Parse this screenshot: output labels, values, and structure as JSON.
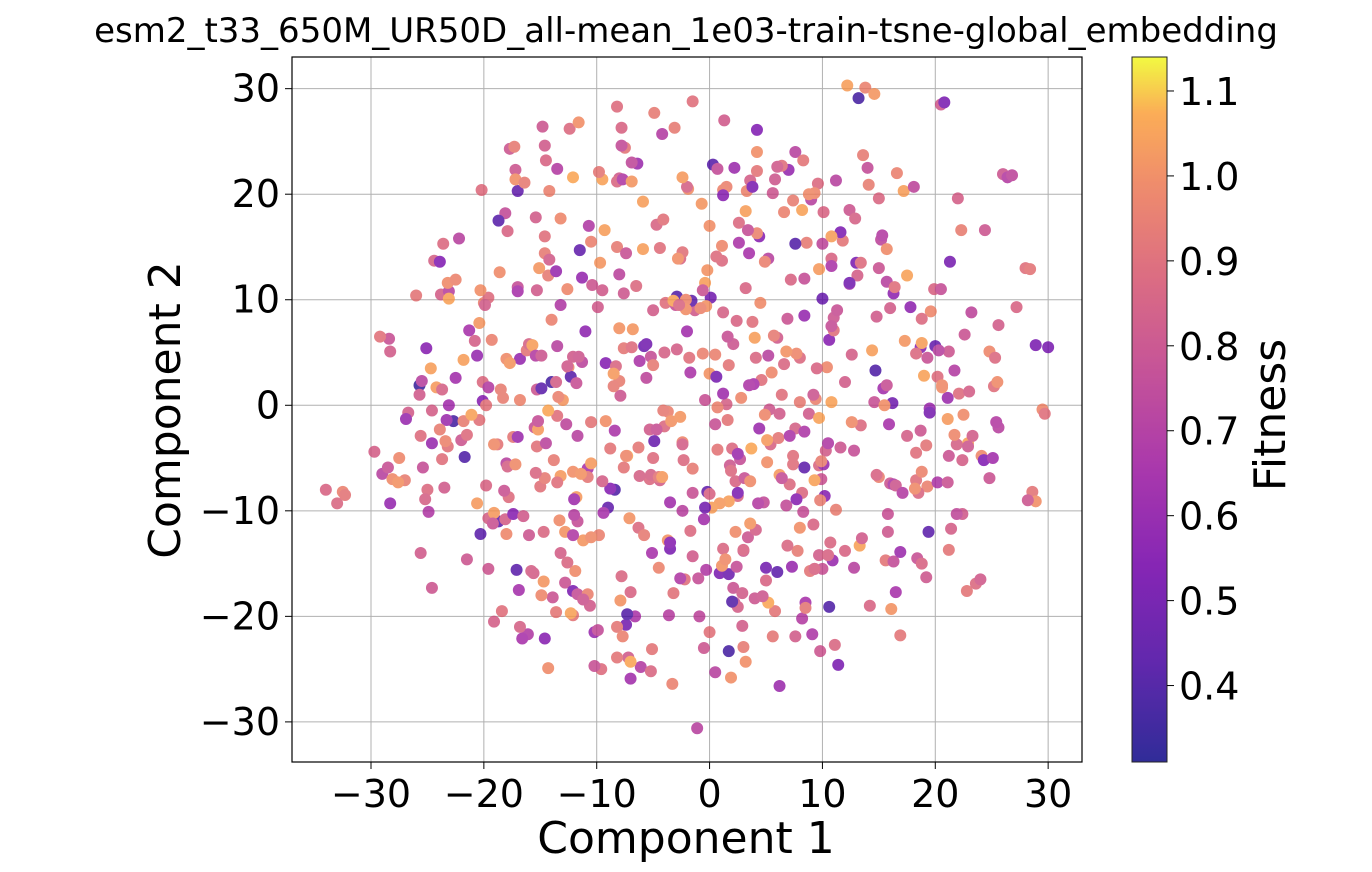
{
  "chart_data": {
    "type": "scatter",
    "title": "esm2_t33_650M_UR50D_all-mean_1e03-train-tsne-global_embedding",
    "xlabel": "Component 1",
    "ylabel": "Component 2",
    "xlim": [
      -37.0,
      33.0
    ],
    "ylim": [
      -33.8,
      33.0
    ],
    "xticks": [
      -30,
      -20,
      -10,
      0,
      10,
      20,
      30
    ],
    "yticks": [
      -30,
      -20,
      -10,
      0,
      10,
      20,
      30
    ],
    "xtick_labels": [
      "−30",
      "−20",
      "−10",
      "0",
      "10",
      "20",
      "30"
    ],
    "ytick_labels": [
      "−30",
      "−20",
      "−10",
      "0",
      "10",
      "20",
      "30"
    ],
    "grid": true,
    "colorbar": {
      "label": "Fitness",
      "colormap": "plasma",
      "range": [
        0.31,
        1.14
      ],
      "ticks": [
        0.4,
        0.5,
        0.6,
        0.7,
        0.8,
        0.9,
        1.0,
        1.1
      ],
      "tick_labels": [
        "0.4",
        "0.5",
        "0.6",
        "0.7",
        "0.8",
        "0.9",
        "1.0",
        "1.1"
      ]
    },
    "point_count": 720,
    "point_cloud": {
      "description": "roughly circular cloud of points centred near the origin, radius about 30 in both components, fitness mostly between 0.75 and 1.05",
      "center": [
        -1.5,
        0.0
      ],
      "radius": 30,
      "fitness_range": [
        0.35,
        1.12
      ]
    },
    "points": [
      [
        -34.0,
        -8.0,
        0.86
      ],
      [
        -33.0,
        -9.3,
        0.87
      ],
      [
        -32.5,
        -8.2,
        0.96
      ],
      [
        -32.3,
        -8.5,
        0.92
      ],
      [
        -29.7,
        -4.4,
        0.84
      ],
      [
        -29.0,
        -6.5,
        0.72
      ],
      [
        -28.5,
        -5.9,
        0.78
      ],
      [
        -28.3,
        -9.3,
        0.6
      ],
      [
        -28.4,
        6.3,
        0.78
      ],
      [
        -28.3,
        5.1,
        0.83
      ],
      [
        -28.1,
        -7.0,
        0.99
      ],
      [
        -27.5,
        -5.0,
        0.98
      ],
      [
        -27.0,
        -7.1,
        0.95
      ],
      [
        -25.7,
        1.9,
        0.35
      ],
      [
        -25.5,
        2.3,
        0.72
      ],
      [
        -25.7,
        1.0,
        0.82
      ],
      [
        -25.1,
        5.4,
        0.56
      ],
      [
        -24.9,
        -10.1,
        0.69
      ],
      [
        -25.0,
        -8.0,
        0.88
      ],
      [
        -23.7,
        -5.1,
        0.9
      ],
      [
        -23.5,
        -7.8,
        0.82
      ],
      [
        -23.8,
        10.5,
        0.84
      ],
      [
        -23.1,
        10.8,
        0.72
      ],
      [
        -23.2,
        11.6,
        0.99
      ],
      [
        -22.5,
        11.9,
        0.97
      ],
      [
        -22.7,
        -1.5,
        0.38
      ],
      [
        -22.0,
        -3.3,
        0.8
      ],
      [
        -21.5,
        -2.8,
        0.89
      ],
      [
        -21.7,
        -4.9,
        0.4
      ],
      [
        -21.5,
        -14.6,
        0.8
      ],
      [
        -21.3,
        7.1,
        0.66
      ],
      [
        -20.8,
        6.1,
        0.84
      ],
      [
        -20.6,
        4.7,
        0.6
      ],
      [
        -20.4,
        -1.4,
        0.91
      ],
      [
        -20.0,
        9.7,
        0.96
      ],
      [
        -20.1,
        0.4,
        0.56
      ],
      [
        -19.8,
        -7.6,
        0.86
      ],
      [
        -19.6,
        -10.7,
        0.85
      ],
      [
        -19.6,
        -15.5,
        0.8
      ],
      [
        -19.1,
        -20.5,
        0.84
      ],
      [
        -18.8,
        -3.7,
        0.92
      ],
      [
        -18.5,
        1.5,
        0.95
      ],
      [
        -18.0,
        -5.5,
        0.72
      ],
      [
        -17.8,
        -8.7,
        0.89
      ],
      [
        -17.7,
        24.3,
        0.8
      ],
      [
        -17.3,
        24.5,
        0.94
      ],
      [
        -17.2,
        22.3,
        0.8
      ],
      [
        -17.0,
        20.3,
        0.45
      ],
      [
        -16.8,
        4.4,
        0.6
      ],
      [
        -16.2,
        5.2,
        0.92
      ],
      [
        -16.0,
        -12.3,
        0.8
      ],
      [
        -15.8,
        -15.7,
        0.85
      ],
      [
        -15.5,
        -2.1,
        0.78
      ],
      [
        -15.3,
        1.5,
        0.8
      ],
      [
        -15.0,
        -7.7,
        0.91
      ],
      [
        -14.8,
        26.4,
        0.8
      ],
      [
        -14.6,
        24.6,
        0.82
      ],
      [
        -14.5,
        23.2,
        0.86
      ],
      [
        -14.3,
        12.3,
        0.94
      ],
      [
        -14.0,
        8.1,
        0.96
      ],
      [
        -13.8,
        -5.2,
        0.94
      ],
      [
        -13.5,
        -1.0,
        0.9
      ],
      [
        -13.2,
        -14.0,
        0.84
      ],
      [
        -12.8,
        -16.8,
        0.79
      ],
      [
        -12.5,
        3.6,
        0.99
      ],
      [
        -12.3,
        2.7,
        0.42
      ],
      [
        -12.1,
        -17.6,
        0.52
      ],
      [
        -11.9,
        -15.7,
        0.99
      ],
      [
        -11.7,
        -2.9,
        0.72
      ],
      [
        -11.3,
        12.1,
        0.6
      ],
      [
        -11.0,
        7.0,
        0.58
      ],
      [
        -10.8,
        -6.0,
        0.66
      ],
      [
        -10.6,
        -19.0,
        0.82
      ],
      [
        -10.2,
        -21.5,
        0.61
      ],
      [
        -9.9,
        9.3,
        0.82
      ],
      [
        -9.7,
        13.5,
        1.02
      ],
      [
        -9.5,
        21.4,
        1.05
      ],
      [
        -9.2,
        4.0,
        0.55
      ],
      [
        -9.0,
        -9.7,
        0.45
      ],
      [
        -8.8,
        -4.1,
        0.92
      ],
      [
        -8.4,
        -8.0,
        0.4
      ],
      [
        -8.2,
        15.0,
        0.94
      ],
      [
        -8.0,
        21.5,
        0.82
      ],
      [
        -7.9,
        0.9,
        0.8
      ],
      [
        -7.6,
        -5.9,
        0.92
      ],
      [
        -7.4,
        -20.8,
        0.5
      ],
      [
        -7.2,
        -23.9,
        0.82
      ],
      [
        -7.0,
        -17.7,
        0.86
      ],
      [
        -6.8,
        7.2,
        1.02
      ],
      [
        -6.5,
        11.3,
        0.88
      ],
      [
        -6.3,
        -11.6,
        0.88
      ],
      [
        -6.1,
        -24.8,
        0.7
      ],
      [
        -5.9,
        19.3,
        1.04
      ],
      [
        -5.6,
        2.6,
        0.74
      ],
      [
        -5.3,
        -2.3,
        0.82
      ],
      [
        -5.1,
        -14.0,
        0.66
      ],
      [
        -4.9,
        27.7,
        0.94
      ],
      [
        -4.7,
        17.1,
        0.86
      ],
      [
        -4.4,
        -7.1,
        0.84
      ],
      [
        -4.2,
        25.7,
        0.7
      ],
      [
        -3.9,
        9.7,
        0.9
      ],
      [
        -3.7,
        -0.6,
        0.96
      ],
      [
        -3.5,
        -9.2,
        0.64
      ],
      [
        -3.3,
        -26.4,
        0.96
      ],
      [
        -3.1,
        26.3,
        0.94
      ],
      [
        -2.9,
        5.3,
        0.84
      ],
      [
        -2.6,
        13.9,
        0.86
      ],
      [
        -2.4,
        -3.5,
        0.98
      ],
      [
        -2.2,
        -16.5,
        0.9
      ],
      [
        -1.9,
        20.5,
        1.0
      ],
      [
        -1.7,
        -11.9,
        0.88
      ],
      [
        -1.5,
        28.8,
        0.9
      ],
      [
        -1.3,
        9.0,
        0.82
      ],
      [
        -1.1,
        -30.6,
        0.72
      ],
      [
        -0.9,
        -20.0,
        0.74
      ],
      [
        -0.6,
        4.9,
        0.96
      ],
      [
        -0.4,
        0.5,
        0.78
      ],
      [
        -0.2,
        -8.2,
        0.45
      ],
      [
        0.0,
        17.0,
        1.0
      ],
      [
        0.1,
        10.2,
        0.5
      ],
      [
        0.3,
        22.8,
        0.42
      ],
      [
        0.5,
        -25.3,
        0.72
      ],
      [
        0.7,
        -4.2,
        0.92
      ],
      [
        0.9,
        -15.9,
        0.52
      ],
      [
        1.1,
        13.7,
        0.88
      ],
      [
        1.3,
        27.0,
        0.82
      ],
      [
        1.5,
        20.7,
        0.96
      ],
      [
        1.7,
        -16.0,
        0.48
      ],
      [
        1.9,
        -25.8,
        1.0
      ],
      [
        2.1,
        5.8,
        0.8
      ],
      [
        2.3,
        -7.2,
        0.86
      ],
      [
        2.6,
        17.3,
        0.88
      ],
      [
        2.8,
        0.7,
        0.98
      ],
      [
        3.0,
        -22.9,
        0.94
      ],
      [
        3.2,
        11.1,
        0.86
      ],
      [
        3.4,
        -12.5,
        0.8
      ],
      [
        3.6,
        21.3,
        0.84
      ],
      [
        3.8,
        7.9,
        0.9
      ],
      [
        4.0,
        -18.3,
        0.8
      ],
      [
        4.2,
        24.0,
        1.0
      ],
      [
        4.4,
        16.0,
        0.56
      ],
      [
        4.6,
        2.4,
        0.9
      ],
      [
        4.8,
        -9.2,
        0.76
      ],
      [
        5.0,
        -15.4,
        0.5
      ],
      [
        5.2,
        13.9,
        0.72
      ],
      [
        5.4,
        -3.7,
        0.86
      ],
      [
        5.6,
        20.1,
        0.8
      ],
      [
        5.8,
        -19.5,
        0.92
      ],
      [
        6.0,
        6.4,
        0.82
      ],
      [
        6.2,
        -26.6,
        0.62
      ],
      [
        6.4,
        1.0,
        0.9
      ],
      [
        6.6,
        18.3,
        0.96
      ],
      [
        6.8,
        -9.5,
        0.76
      ],
      [
        7.0,
        22.3,
        0.6
      ],
      [
        7.2,
        11.9,
        0.86
      ],
      [
        7.4,
        -5.6,
        0.9
      ],
      [
        7.6,
        24.0,
        0.72
      ],
      [
        7.8,
        -13.8,
        0.94
      ],
      [
        8.0,
        4.5,
        0.88
      ],
      [
        8.2,
        -20.2,
        0.7
      ],
      [
        8.4,
        8.5,
        0.6
      ],
      [
        8.6,
        15.4,
        0.94
      ],
      [
        8.8,
        -0.8,
        0.82
      ],
      [
        9.0,
        19.5,
        0.72
      ],
      [
        9.2,
        -11.3,
        0.86
      ],
      [
        9.4,
        0.6,
        0.96
      ],
      [
        9.6,
        21.0,
        0.88
      ],
      [
        9.8,
        -23.3,
        0.8
      ],
      [
        10.0,
        15.3,
        0.74
      ],
      [
        10.2,
        -8.6,
        0.56
      ],
      [
        10.4,
        3.6,
        0.98
      ],
      [
        10.6,
        -19.1,
        0.4
      ],
      [
        10.8,
        13.9,
        0.86
      ],
      [
        11.0,
        8.3,
        0.8
      ],
      [
        11.2,
        21.3,
        0.72
      ],
      [
        11.4,
        -24.6,
        0.52
      ],
      [
        11.6,
        -4.0,
        0.8
      ],
      [
        11.8,
        15.6,
        0.92
      ],
      [
        12.0,
        -13.8,
        0.86
      ],
      [
        12.2,
        30.3,
        1.04
      ],
      [
        12.4,
        18.5,
        0.8
      ],
      [
        12.6,
        4.8,
        0.84
      ],
      [
        12.8,
        -15.4,
        0.72
      ],
      [
        13.0,
        13.5,
        0.52
      ],
      [
        13.2,
        29.1,
        0.38
      ],
      [
        13.4,
        -1.9,
        0.88
      ],
      [
        13.6,
        23.7,
        0.94
      ],
      [
        13.8,
        30.1,
        0.96
      ],
      [
        14.0,
        22.5,
        0.76
      ],
      [
        14.2,
        -19.0,
        0.86
      ],
      [
        14.4,
        5.2,
        1.04
      ],
      [
        14.6,
        29.5,
        1.02
      ],
      [
        14.8,
        8.4,
        0.82
      ],
      [
        15.0,
        -6.8,
        0.96
      ],
      [
        15.2,
        15.7,
        0.74
      ],
      [
        15.4,
        1.6,
        0.64
      ],
      [
        15.7,
        11.7,
        0.72
      ],
      [
        16.0,
        -7.4,
        0.8
      ],
      [
        16.3,
        10.6,
        0.58
      ],
      [
        16.6,
        22.0,
        0.96
      ],
      [
        16.9,
        -21.8,
        0.92
      ],
      [
        17.2,
        20.3,
        1.04
      ],
      [
        17.5,
        -2.9,
        0.84
      ],
      [
        17.8,
        9.3,
        0.58
      ],
      [
        18.1,
        20.7,
        0.74
      ],
      [
        18.4,
        -14.5,
        0.78
      ],
      [
        18.7,
        5.5,
        0.56
      ],
      [
        19.0,
        2.8,
        1.05
      ],
      [
        19.3,
        -7.7,
        0.96
      ],
      [
        19.6,
        8.9,
        0.98
      ],
      [
        19.9,
        11.0,
        0.86
      ],
      [
        20.2,
        -7.3,
        0.68
      ],
      [
        20.5,
        28.5,
        0.82
      ],
      [
        20.8,
        28.7,
        0.52
      ],
      [
        21.1,
        0.7,
        0.62
      ],
      [
        21.4,
        -11.7,
        0.84
      ],
      [
        21.7,
        3.3,
        0.7
      ],
      [
        22.0,
        19.6,
        0.84
      ],
      [
        22.4,
        -5.2,
        0.84
      ],
      [
        22.8,
        -17.6,
        0.92
      ],
      [
        23.2,
        8.8,
        0.74
      ],
      [
        23.6,
        -16.9,
        0.88
      ],
      [
        24.0,
        -16.5,
        0.82
      ],
      [
        24.4,
        16.6,
        0.8
      ],
      [
        24.8,
        5.1,
        0.98
      ],
      [
        25.2,
        1.8,
        0.9
      ],
      [
        25.6,
        -2.1,
        0.72
      ],
      [
        26.0,
        21.9,
        0.8
      ],
      [
        26.4,
        21.6,
        0.7
      ],
      [
        26.8,
        21.8,
        0.74
      ],
      [
        27.2,
        9.3,
        0.86
      ],
      [
        28.0,
        13.0,
        0.9
      ],
      [
        28.4,
        12.9,
        0.92
      ],
      [
        28.6,
        -8.2,
        0.92
      ],
      [
        28.9,
        -9.1,
        1.0
      ],
      [
        28.2,
        -9.0,
        0.8
      ],
      [
        28.9,
        5.7,
        0.52
      ],
      [
        29.5,
        -0.4,
        0.98
      ],
      [
        29.7,
        -0.8,
        0.9
      ],
      [
        30.0,
        5.5,
        0.52
      ]
    ]
  }
}
